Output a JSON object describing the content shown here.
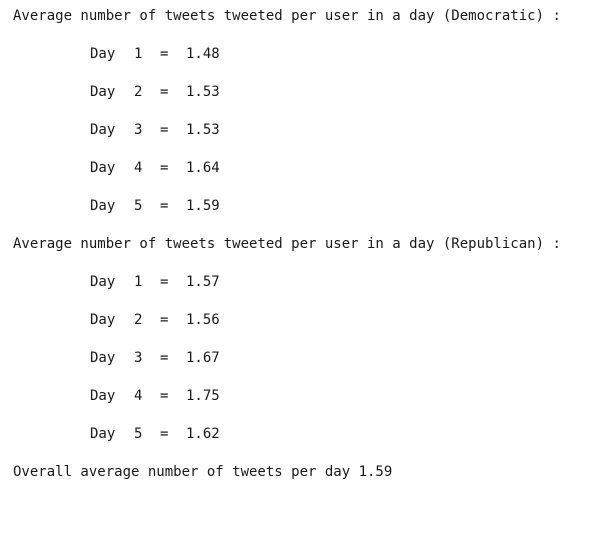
{
  "democratic": {
    "heading": "Average number of tweets tweeted per user in a day (Democratic) :",
    "rows": [
      {
        "label": "Day",
        "num": "1",
        "eq": "=",
        "value": "1.48"
      },
      {
        "label": "Day",
        "num": "2",
        "eq": "=",
        "value": "1.53"
      },
      {
        "label": "Day",
        "num": "3",
        "eq": "=",
        "value": "1.53"
      },
      {
        "label": "Day",
        "num": "4",
        "eq": "=",
        "value": "1.64"
      },
      {
        "label": "Day",
        "num": "5",
        "eq": "=",
        "value": "1.59"
      }
    ]
  },
  "republican": {
    "heading": "Average number of tweets tweeted per user in a day (Republican) :",
    "rows": [
      {
        "label": "Day",
        "num": "1",
        "eq": "=",
        "value": "1.57"
      },
      {
        "label": "Day",
        "num": "2",
        "eq": "=",
        "value": "1.56"
      },
      {
        "label": "Day",
        "num": "3",
        "eq": "=",
        "value": "1.67"
      },
      {
        "label": "Day",
        "num": "4",
        "eq": "=",
        "value": "1.75"
      },
      {
        "label": "Day",
        "num": "5",
        "eq": "=",
        "value": "1.62"
      }
    ]
  },
  "overall": "Overall average number of tweets per day 1.59"
}
